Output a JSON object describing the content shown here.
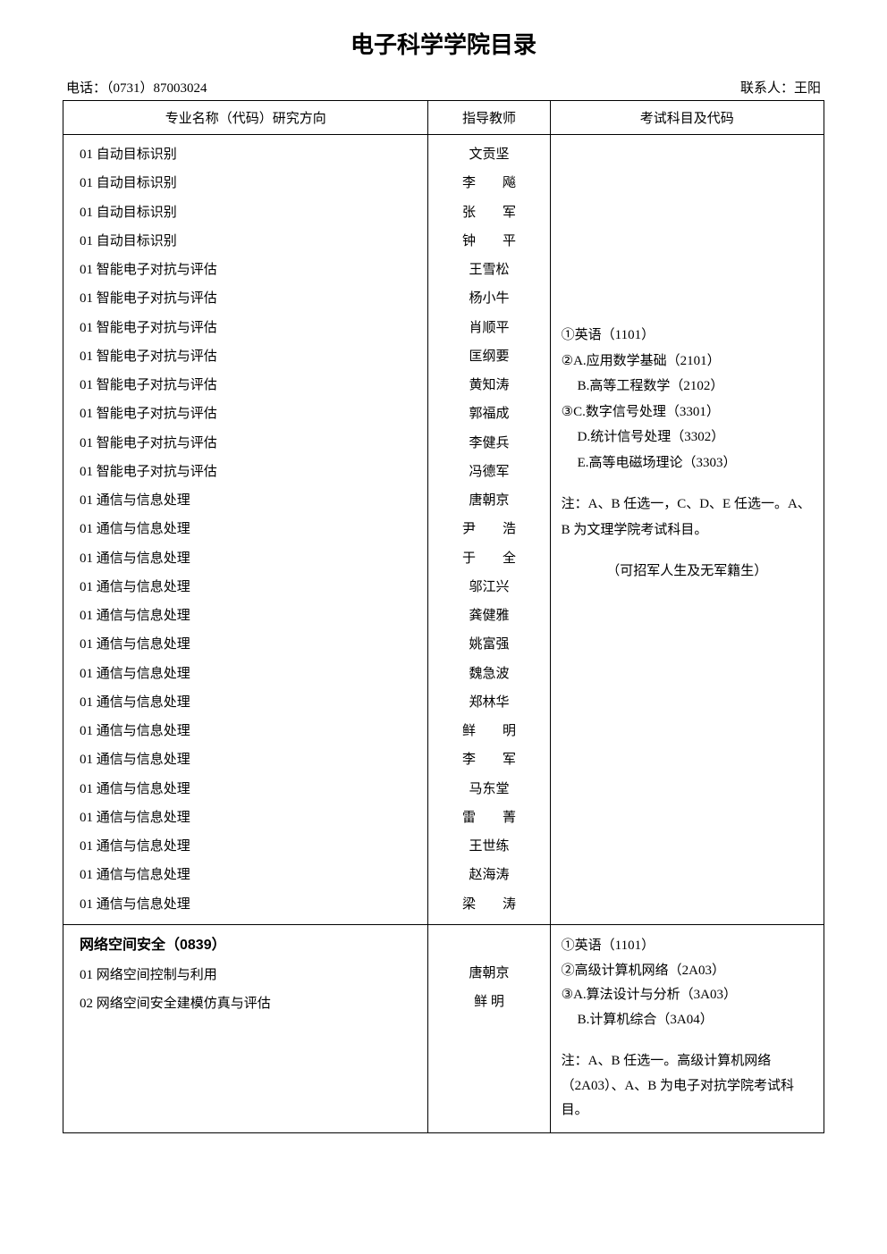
{
  "title": "电子科学学院目录",
  "phone_label": "电话：（0731）87003024",
  "contact_label": "联系人：王阳",
  "headers": {
    "major": "专业名称（代码）研究方向",
    "advisor": "指导教师",
    "exam": "考试科目及代码"
  },
  "section1": {
    "rows": [
      {
        "major": "01 自动目标识别",
        "advisor": "文贡坚",
        "two_char": false
      },
      {
        "major": "01 自动目标识别",
        "advisor_a": "李",
        "advisor_b": "飚",
        "two_char": true
      },
      {
        "major": "01 自动目标识别",
        "advisor_a": "张",
        "advisor_b": "军",
        "two_char": true
      },
      {
        "major": "01 自动目标识别",
        "advisor_a": "钟",
        "advisor_b": "平",
        "two_char": true
      },
      {
        "major": "01 智能电子对抗与评估",
        "advisor": "王雪松",
        "two_char": false
      },
      {
        "major": "01 智能电子对抗与评估",
        "advisor": "杨小牛",
        "two_char": false
      },
      {
        "major": "01 智能电子对抗与评估",
        "advisor": "肖顺平",
        "two_char": false
      },
      {
        "major": "01 智能电子对抗与评估",
        "advisor": "匡纲要",
        "two_char": false
      },
      {
        "major": "01 智能电子对抗与评估",
        "advisor": "黄知涛",
        "two_char": false
      },
      {
        "major": "01 智能电子对抗与评估",
        "advisor": "郭福成",
        "two_char": false
      },
      {
        "major": "01 智能电子对抗与评估",
        "advisor": "李健兵",
        "two_char": false
      },
      {
        "major": "01 智能电子对抗与评估",
        "advisor": "冯德军",
        "two_char": false
      },
      {
        "major": "01 通信与信息处理",
        "advisor": "唐朝京",
        "two_char": false
      },
      {
        "major": "01 通信与信息处理",
        "advisor_a": "尹",
        "advisor_b": "浩",
        "two_char": true
      },
      {
        "major": "01 通信与信息处理",
        "advisor_a": "于",
        "advisor_b": "全",
        "two_char": true
      },
      {
        "major": "01 通信与信息处理",
        "advisor": "邬江兴",
        "two_char": false
      },
      {
        "major": "01 通信与信息处理",
        "advisor": "龚健雅",
        "two_char": false
      },
      {
        "major": "01 通信与信息处理",
        "advisor": "姚富强",
        "two_char": false
      },
      {
        "major": "01 通信与信息处理",
        "advisor": "魏急波",
        "two_char": false
      },
      {
        "major": "01 通信与信息处理",
        "advisor": "郑林华",
        "two_char": false
      },
      {
        "major": "01 通信与信息处理",
        "advisor_a": "鲜",
        "advisor_b": "明",
        "two_char": true
      },
      {
        "major": "01 通信与信息处理",
        "advisor_a": "李",
        "advisor_b": "军",
        "two_char": true
      },
      {
        "major": "01 通信与信息处理",
        "advisor": "马东堂",
        "two_char": false
      },
      {
        "major": "01 通信与信息处理",
        "advisor_a": "雷",
        "advisor_b": "菁",
        "two_char": true
      },
      {
        "major": "01 通信与信息处理",
        "advisor": "王世练",
        "two_char": false
      },
      {
        "major": "01 通信与信息处理",
        "advisor": "赵海涛",
        "two_char": false
      },
      {
        "major": "01 通信与信息处理",
        "advisor_a": "梁",
        "advisor_b": "涛",
        "two_char": true
      }
    ],
    "exam": {
      "line1": "①英语（1101）",
      "line2": "②A.应用数学基础（2101）",
      "line2b": "B.高等工程数学（2102）",
      "line3": "③C.数字信号处理（3301）",
      "line3b": "D.统计信号处理（3302）",
      "line3c": "E.高等电磁场理论（3303）",
      "note1": "注：A、B 任选一，C、D、E 任选一。A、B 为文理学院考试科目。",
      "note2": "（可招军人生及无军籍生）"
    }
  },
  "section2": {
    "title": "网络空间安全（0839）",
    "rows": [
      {
        "major": "01 网络空间控制与利用",
        "advisor": "唐朝京"
      },
      {
        "major": "02 网络空间安全建模仿真与评估",
        "advisor": "鲜  明"
      }
    ],
    "exam": {
      "line1": "①英语（1101）",
      "line2": "②高级计算机网络（2A03）",
      "line3": "③A.算法设计与分析（3A03）",
      "line3b": "B.计算机综合（3A04）",
      "note": "注：A、B 任选一。高级计算机网络（2A03）、A、B 为电子对抗学院考试科目。"
    }
  }
}
